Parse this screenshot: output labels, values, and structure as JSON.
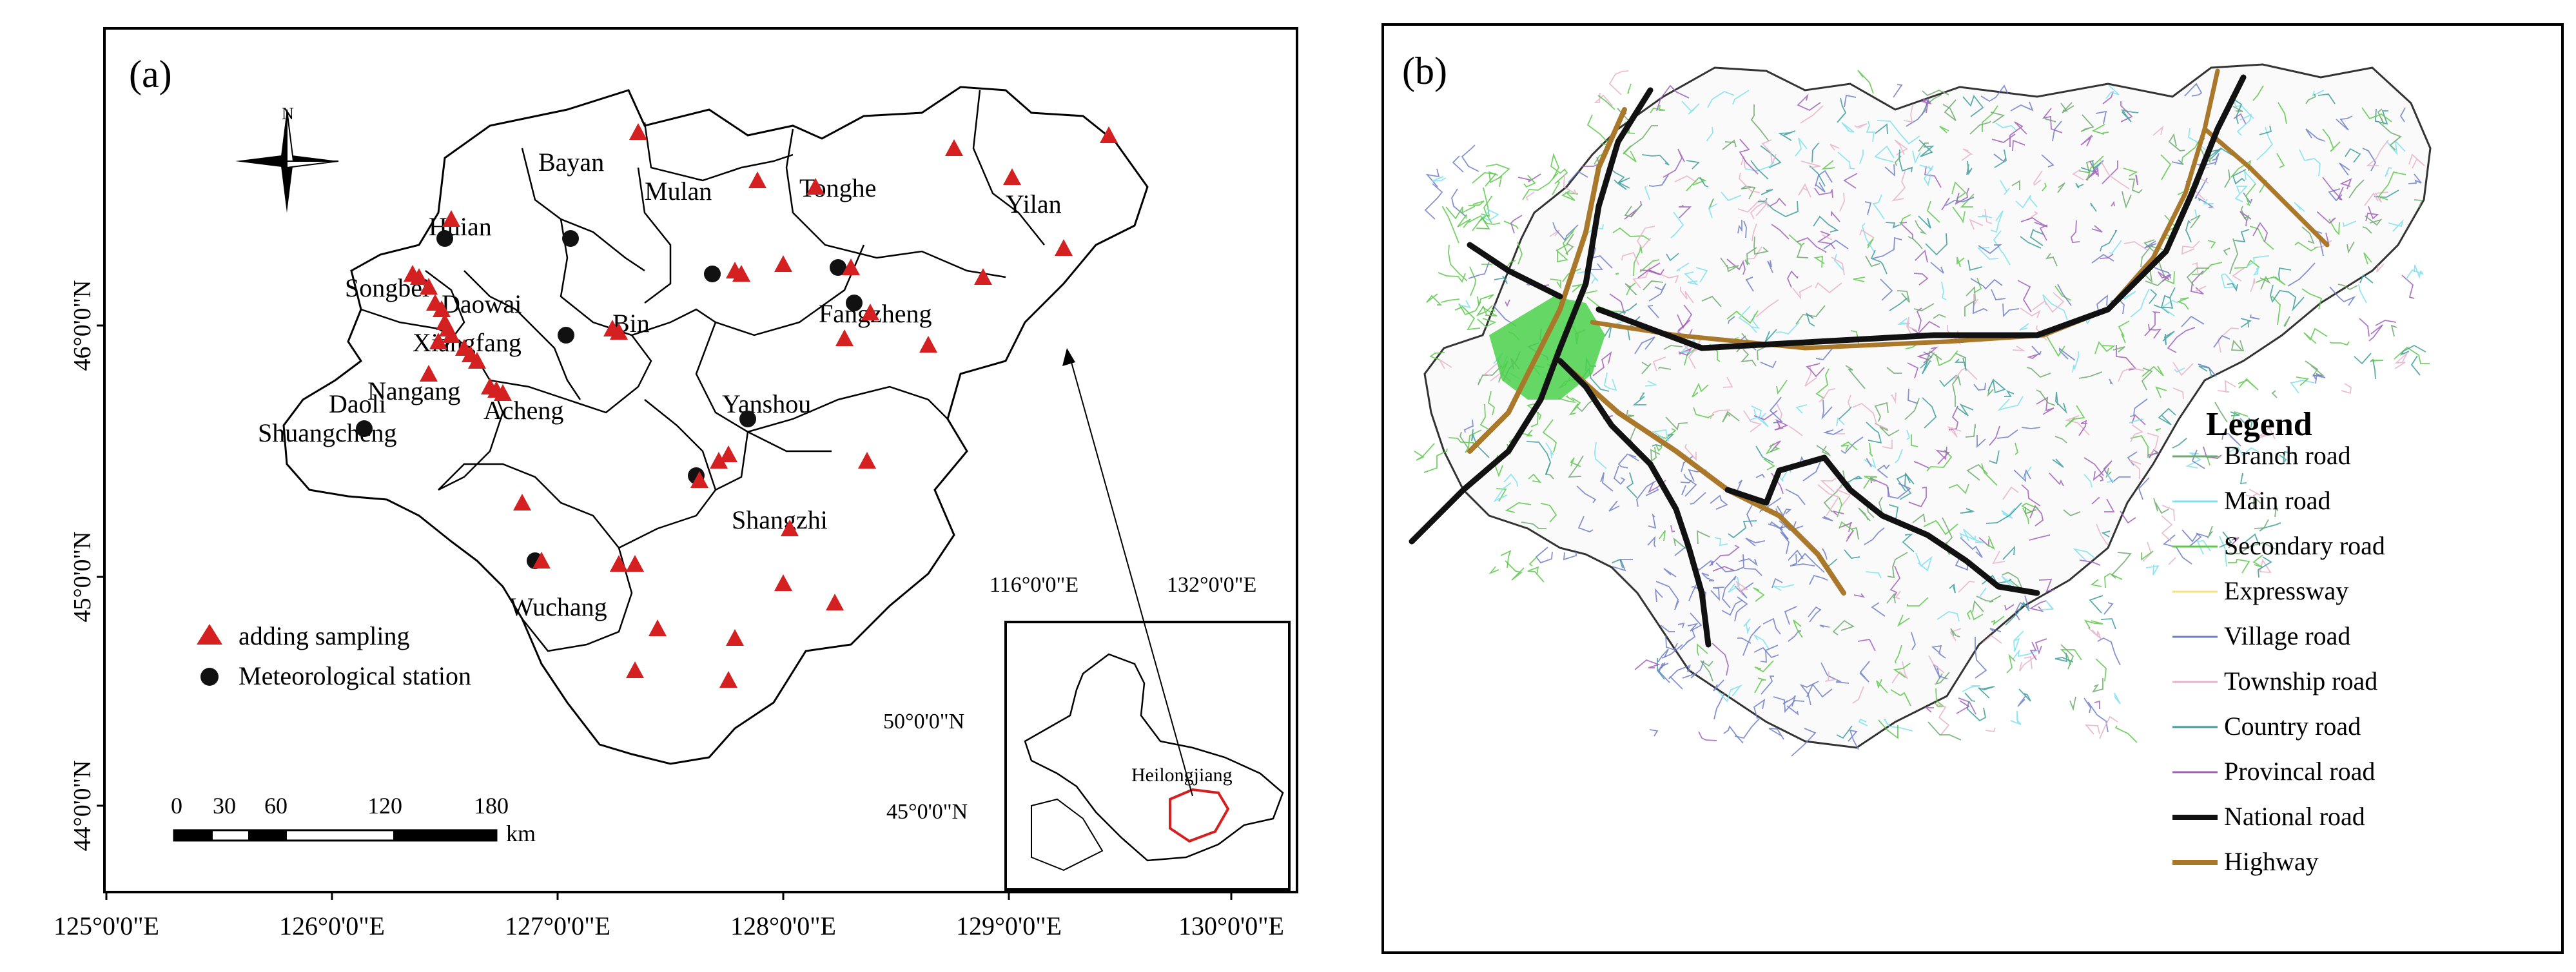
{
  "panel_a": {
    "label": "(a)",
    "north_label": "N",
    "counties": [
      "Huian",
      "Bayan",
      "Mulan",
      "Tonghe",
      "Yilan",
      "Songbei",
      "Daowai",
      "Xiangfang",
      "Daoli",
      "Nangang",
      "Bin",
      "Fangzheng",
      "Yanshou",
      "Shuangcheng",
      "Acheng",
      "Shangzhi",
      "Wuchang"
    ],
    "legend": {
      "sampling": "adding sampling",
      "station": "Meteorological station"
    },
    "scale_bar": {
      "ticks": [
        "0",
        "30",
        "60",
        "120",
        "180"
      ],
      "unit": "km"
    },
    "y_ticks": [
      "46°0'0\"N",
      "45°0'0\"N",
      "44°0'0\"N"
    ],
    "x_ticks": [
      "125°0'0\"E",
      "126°0'0\"E",
      "127°0'0\"E",
      "128°0'0\"E",
      "129°0'0\"E",
      "130°0'0\"E"
    ],
    "inset": {
      "top_ticks": [
        "116°0'0\"E",
        "132°0'0\"E"
      ],
      "left_ticks": [
        "50°0'0\"N",
        "45°0'0\"N"
      ],
      "label": "Heilongjiang"
    }
  },
  "panel_b": {
    "label": "(b)",
    "legend": {
      "title": "Legend",
      "items": [
        {
          "label": "Branch road",
          "color": "#6fa96f"
        },
        {
          "label": "Main road",
          "color": "#7fe0ee"
        },
        {
          "label": "Secondary road",
          "color": "#5ec84c"
        },
        {
          "label": "Expressway",
          "color": "#f3e37a"
        },
        {
          "label": "Village road",
          "color": "#6f7fc6"
        },
        {
          "label": "Township road",
          "color": "#e8b3c9"
        },
        {
          "label": "Country road",
          "color": "#3e9c9c"
        },
        {
          "label": "Provincal road",
          "color": "#a060b8"
        },
        {
          "label": "National road",
          "color": "#111111"
        },
        {
          "label": "Highway",
          "color": "#a9782a"
        }
      ]
    }
  },
  "colors": {
    "sampling": "#d42020",
    "station": "#111111",
    "urban": "#4ad04a"
  }
}
